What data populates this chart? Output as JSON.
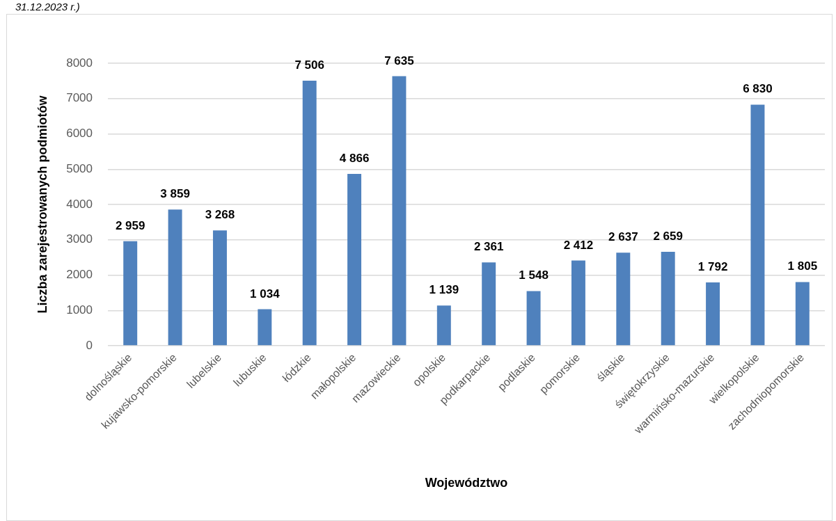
{
  "chart_data": {
    "type": "bar",
    "xlabel": "Województwo",
    "ylabel": "Liczba zarejestrowanych podmiotów",
    "annotations": [
      "31.12.2023 r.)"
    ],
    "categories": [
      "dolnośląskie",
      "kujawsko-pomorskie",
      "lubelskie",
      "lubuskie",
      "łódzkie",
      "małopolskie",
      "mazowieckie",
      "opolskie",
      "podkarpackie",
      "podlaskie",
      "pomorskie",
      "śląskie",
      "świętokrzyskie",
      "warmińsko-mazurskie",
      "wielkopolskie",
      "zachodniopomorskie"
    ],
    "values": [
      2959,
      3859,
      3268,
      1034,
      7506,
      4866,
      7635,
      1139,
      2361,
      1548,
      2412,
      2637,
      2659,
      1792,
      6830,
      1805
    ],
    "value_labels": [
      "2 959",
      "3 859",
      "3 268",
      "1 034",
      "7 506",
      "4 866",
      "7 635",
      "1 139",
      "2 361",
      "1 548",
      "2 412",
      "2 637",
      "2 659",
      "1 792",
      "6 830",
      "1 805"
    ],
    "color": "#4f81bd",
    "ylim": [
      0,
      8000
    ],
    "yticks": [
      0,
      1000,
      2000,
      3000,
      4000,
      5000,
      6000,
      7000,
      8000
    ],
    "grid": "y"
  }
}
